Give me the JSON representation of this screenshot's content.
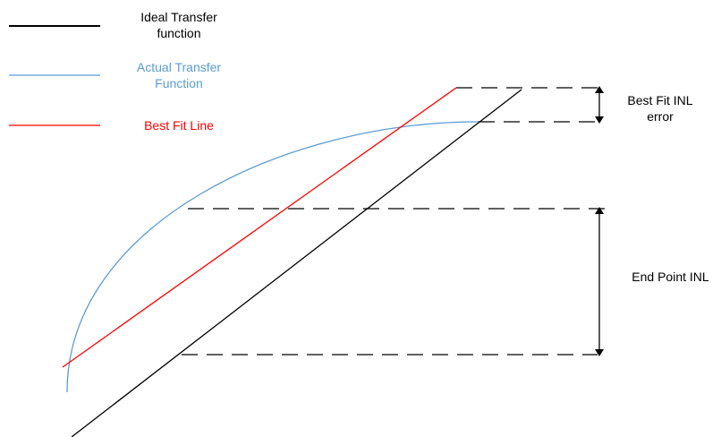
{
  "legend": {
    "ideal": {
      "line1": "Ideal Transfer",
      "line2": "function",
      "color": "#000000"
    },
    "actual": {
      "line1": "Actual Transfer",
      "line2": "Function",
      "color": "#5b9bd5"
    },
    "bestfit": {
      "line1": "Best Fit Line",
      "color": "#ff0000"
    }
  },
  "annotations": {
    "best_fit_inl": {
      "line1": "Best Fit INL",
      "line2": "error"
    },
    "end_point_inl": {
      "line1": "End Point INL"
    }
  },
  "colors": {
    "ideal": "#000000",
    "actual": "#5b9bd5",
    "bestfit": "#ff0000",
    "dashed": "#000000",
    "arrow": "#000000"
  }
}
